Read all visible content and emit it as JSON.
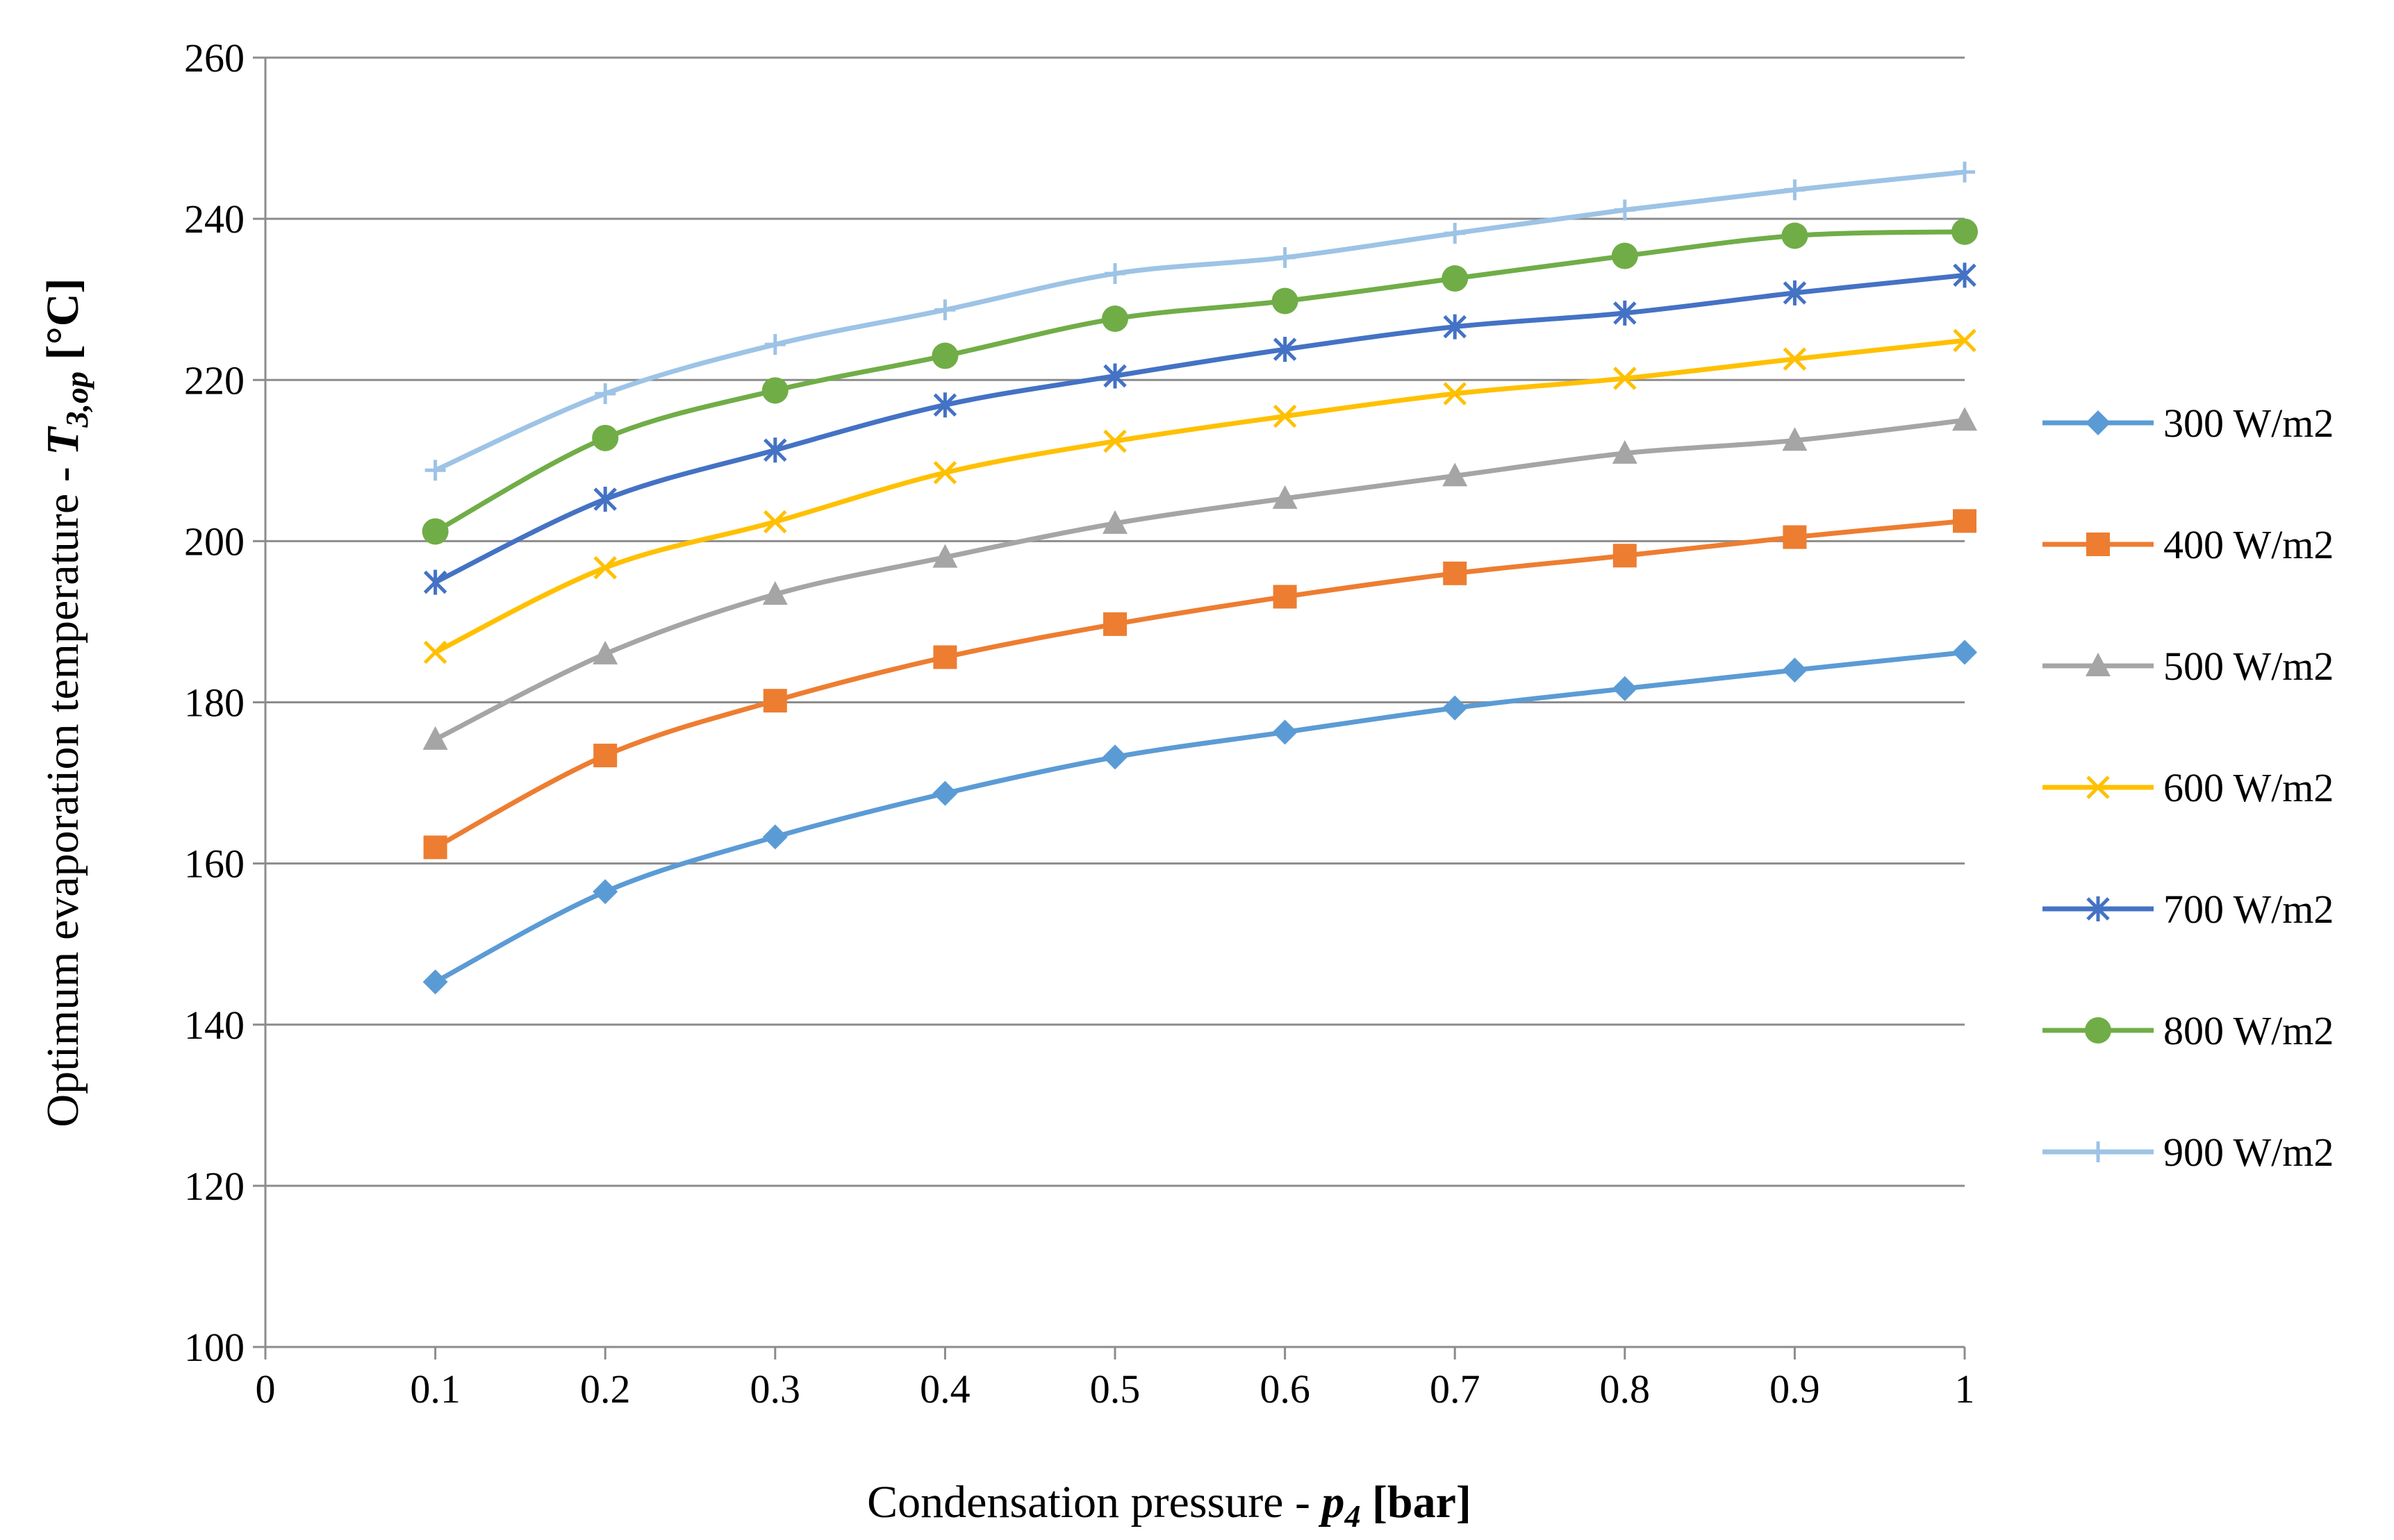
{
  "chart_data": {
    "type": "line",
    "title": "",
    "xlabel": {
      "prefix": "Condensation pressure - ",
      "var": "p",
      "sub": "4",
      "unit": " [bar]"
    },
    "ylabel": {
      "prefix": "Optimum evaporation temperature - ",
      "var": "T",
      "sub": "3,op",
      "unit": " [°C]"
    },
    "xlim": [
      0,
      1
    ],
    "ylim": [
      100,
      260
    ],
    "x_ticks": [
      0,
      0.1,
      0.2,
      0.3,
      0.4,
      0.5,
      0.6,
      0.7,
      0.8,
      0.9,
      1
    ],
    "x_tick_labels": [
      "0",
      "0.1",
      "0.2",
      "0.3",
      "0.4",
      "0.5",
      "0.6",
      "0.7",
      "0.8",
      "0.9",
      "1"
    ],
    "y_ticks": [
      100,
      120,
      140,
      160,
      180,
      200,
      220,
      240,
      260
    ],
    "y_tick_labels": [
      "100",
      "120",
      "140",
      "160",
      "180",
      "200",
      "220",
      "240",
      "260"
    ],
    "grid": "horizontal",
    "legend_position": "right",
    "x": [
      0.1,
      0.2,
      0.3,
      0.4,
      0.5,
      0.6,
      0.7,
      0.8,
      0.9,
      1.0
    ],
    "series": [
      {
        "name": "300 W/m2",
        "color": "#5b9bd5",
        "marker": "diamond",
        "values": [
          145.3,
          156.5,
          163.3,
          168.7,
          173.2,
          176.3,
          179.3,
          181.7,
          184.0,
          186.2
        ]
      },
      {
        "name": "400 W/m2",
        "color": "#ed7d31",
        "marker": "square",
        "values": [
          162.0,
          173.4,
          180.2,
          185.6,
          189.7,
          193.1,
          196.0,
          198.2,
          200.5,
          202.5
        ]
      },
      {
        "name": "500 W/m2",
        "color": "#a5a5a5",
        "marker": "triangle",
        "values": [
          175.4,
          186.0,
          193.4,
          198.0,
          202.2,
          205.3,
          208.1,
          210.9,
          212.5,
          215.0
        ]
      },
      {
        "name": "600 W/m2",
        "color": "#ffc000",
        "marker": "x",
        "values": [
          186.2,
          196.7,
          202.4,
          208.5,
          212.4,
          215.5,
          218.3,
          220.2,
          222.6,
          224.9
        ]
      },
      {
        "name": "700 W/m2",
        "color": "#4472c4",
        "marker": "star",
        "values": [
          194.9,
          205.2,
          211.3,
          216.9,
          220.5,
          223.8,
          226.6,
          228.3,
          230.8,
          233.0
        ]
      },
      {
        "name": "800 W/m2",
        "color": "#70ad47",
        "marker": "circle",
        "values": [
          201.2,
          212.8,
          218.7,
          223.0,
          227.6,
          229.8,
          232.6,
          235.4,
          237.9,
          238.4
        ]
      },
      {
        "name": "900 W/m2",
        "color": "#9dc3e6",
        "marker": "plus",
        "values": [
          208.8,
          218.3,
          224.4,
          228.7,
          233.2,
          235.2,
          238.2,
          241.1,
          243.6,
          245.8
        ]
      }
    ]
  }
}
